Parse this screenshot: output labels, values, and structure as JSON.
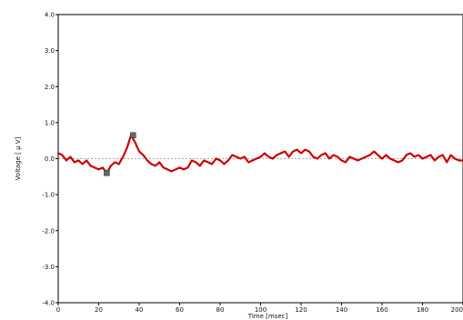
{
  "chart_data": {
    "type": "line",
    "title": "",
    "xlabel": "Time [msec]",
    "ylabel": "Voltage [ μ V]",
    "xlim": [
      0,
      200
    ],
    "ylim": [
      -4.0,
      4.0
    ],
    "xticks": [
      "0",
      "20",
      "40",
      "60",
      "80",
      "100",
      "120",
      "140",
      "160",
      "180",
      "200"
    ],
    "yticks": [
      "-4.0",
      "-3.0",
      "-2.0",
      "-1.0",
      "0.0",
      "1.0",
      "2.0",
      "3.0",
      "4.0"
    ],
    "grid": false,
    "baseline": 0.0,
    "series": [
      {
        "color": "#cc0000",
        "x": [
          0,
          2,
          4,
          6,
          8,
          10,
          12,
          14,
          16,
          18,
          20,
          22,
          24,
          26,
          28,
          30,
          32,
          34,
          36,
          38,
          40,
          42,
          44,
          46,
          48,
          50,
          52,
          54,
          56,
          58,
          60,
          62,
          64,
          66,
          68,
          70,
          72,
          74,
          76,
          78,
          80,
          82,
          84,
          86,
          88,
          90,
          92,
          94,
          96,
          98,
          100,
          102,
          104,
          106,
          108,
          110,
          112,
          114,
          116,
          118,
          120,
          122,
          124,
          126,
          128,
          130,
          132,
          134,
          136,
          138,
          140,
          142,
          144,
          146,
          148,
          150,
          152,
          154,
          156,
          158,
          160,
          162,
          164,
          166,
          168,
          170,
          172,
          174,
          176,
          178,
          180,
          182,
          184,
          186,
          188,
          190,
          192,
          194,
          196,
          198,
          200
        ],
        "y": [
          0.15,
          0.1,
          -0.05,
          0.05,
          -0.1,
          -0.05,
          -0.15,
          -0.05,
          -0.2,
          -0.25,
          -0.3,
          -0.25,
          -0.4,
          -0.2,
          -0.1,
          -0.15,
          0.05,
          0.3,
          0.65,
          0.45,
          0.2,
          0.1,
          -0.05,
          -0.15,
          -0.2,
          -0.1,
          -0.25,
          -0.3,
          -0.35,
          -0.3,
          -0.25,
          -0.3,
          -0.25,
          -0.05,
          -0.1,
          -0.2,
          -0.05,
          -0.1,
          -0.15,
          0.0,
          -0.05,
          -0.15,
          -0.05,
          0.1,
          0.05,
          0.0,
          0.05,
          -0.1,
          -0.05,
          0.0,
          0.05,
          0.15,
          0.05,
          0.0,
          0.1,
          0.15,
          0.2,
          0.05,
          0.2,
          0.25,
          0.15,
          0.25,
          0.2,
          0.05,
          0.0,
          0.1,
          0.15,
          0.0,
          0.1,
          0.05,
          -0.05,
          -0.1,
          0.05,
          0.0,
          -0.05,
          0.0,
          0.05,
          0.1,
          0.2,
          0.1,
          0.0,
          0.1,
          0.0,
          -0.05,
          -0.1,
          -0.05,
          0.1,
          0.15,
          0.05,
          0.1,
          0.0,
          0.05,
          0.1,
          -0.05,
          0.05,
          0.1,
          -0.1,
          0.1,
          0.0,
          -0.05,
          -0.05
        ]
      }
    ],
    "markers": [
      {
        "x": 24,
        "y": -0.4
      },
      {
        "x": 37,
        "y": 0.65
      }
    ]
  }
}
